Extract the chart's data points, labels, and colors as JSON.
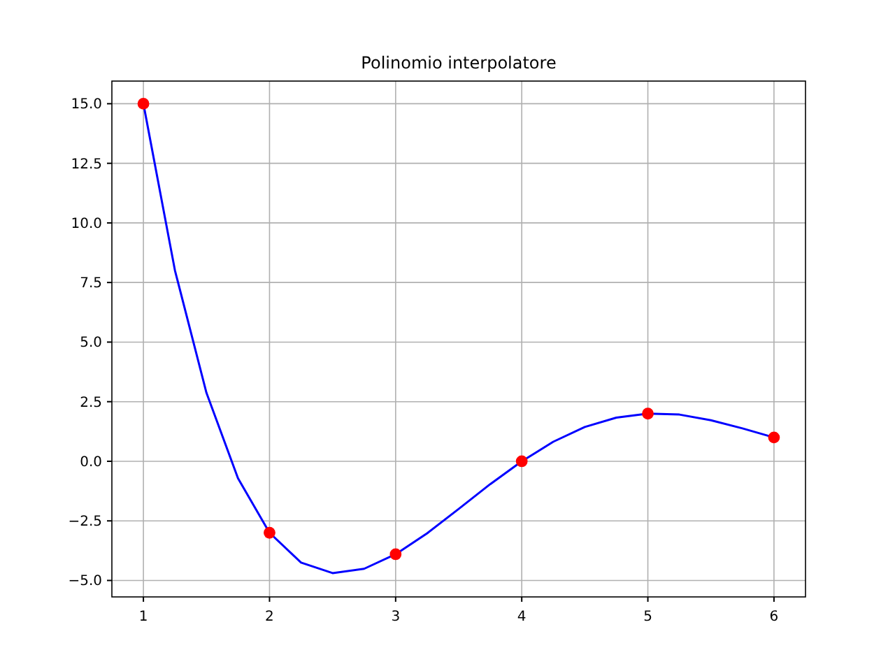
{
  "chart_data": {
    "type": "line",
    "title": "Polinomio interpolatore",
    "xlim": [
      0.75,
      6.25
    ],
    "ylim": [
      -5.69,
      15.95
    ],
    "xticks": [
      1,
      2,
      3,
      4,
      5,
      6
    ],
    "yticks": [
      {
        "value": -5,
        "label": "−5.0"
      },
      {
        "value": -2.5,
        "label": "−2.5"
      },
      {
        "value": 0,
        "label": "0.0"
      },
      {
        "value": 2.5,
        "label": "2.5"
      },
      {
        "value": 5,
        "label": "5.0"
      },
      {
        "value": 7.5,
        "label": "7.5"
      },
      {
        "value": 10,
        "label": "10.0"
      },
      {
        "value": 12.5,
        "label": "12.5"
      },
      {
        "value": 15,
        "label": "15.0"
      }
    ],
    "grid": true,
    "series": [
      {
        "color": "#0000ff",
        "marker": "none",
        "x": [
          1,
          1.25,
          1.5,
          1.75,
          2,
          2.25,
          2.5,
          2.75,
          3,
          3.25,
          3.5,
          3.75,
          4,
          4.25,
          4.5,
          4.75,
          5,
          5.25,
          5.5,
          5.75,
          6
        ],
        "values": [
          15,
          8.01,
          2.87,
          -0.71,
          -3,
          -4.25,
          -4.69,
          -4.51,
          -3.9,
          -3.02,
          -2,
          -0.96,
          0,
          0.82,
          1.44,
          1.83,
          2,
          1.96,
          1.72,
          1.38,
          1
        ]
      },
      {
        "type": "scatter",
        "color": "#ff0000",
        "marker": "circle",
        "x": [
          1,
          2,
          3,
          4,
          5,
          6
        ],
        "values": [
          15,
          -3,
          -3.9,
          0,
          2,
          1
        ]
      }
    ]
  }
}
